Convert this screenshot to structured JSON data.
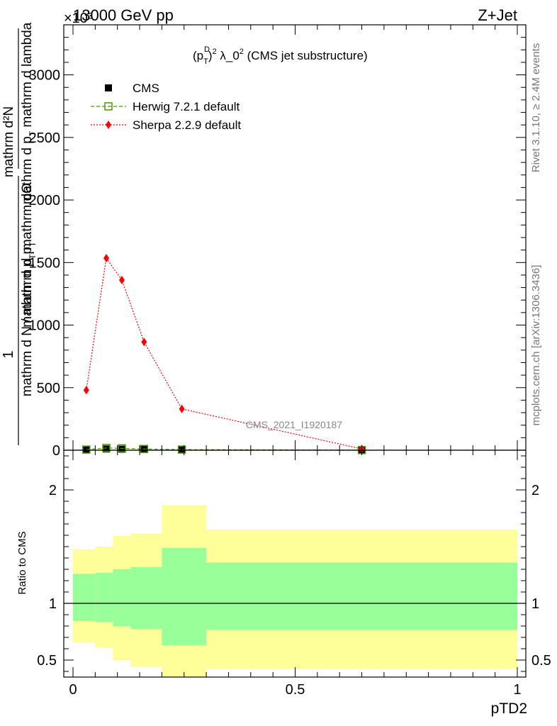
{
  "header": {
    "left": "13000 GeV pp",
    "right": "Z+Jet",
    "exponent": "×10³"
  },
  "plot_title": {
    "p": "(p",
    "sup_d": "D",
    "sub_t": "T",
    "close": ")",
    "sup_2": "2",
    "rest": " λ_0",
    "sup_2b": "2",
    "tail": " (CMS jet substructure)"
  },
  "y_title": {
    "numerator_1": "1",
    "denominator_1": "mathrm d N / mathrm d p",
    "denominator_1_sub": "T",
    "numerator_2": "mathrm d²N",
    "denominator_2": "mathrm d p",
    "denominator_2_sub": "T",
    "denominator_2_rest": " mathrm d lambda",
    "stacked_fraction_denominator": "mathrm d p",
    "stacked_sub": "T",
    "stacked_rest": " mathrm dΘ"
  },
  "right_labels": {
    "rivet": "Rivet 3.1.10, ≥ 2.4M events",
    "mcplots": "mcplots.cern.ch [arXiv:1306.3436]"
  },
  "watermark": "CMS_2021_I1920187",
  "ratio_ylabel": "Ratio to CMS",
  "xlabel": "pTD2",
  "chart_data": {
    "type": "line",
    "xlim": [
      0,
      1
    ],
    "ylim": [
      0,
      3400
    ],
    "y_scale_exponent": 3,
    "xticks": [
      "0",
      "0.5",
      "1"
    ],
    "yticks": [
      "0",
      "500",
      "1000",
      "1500",
      "2000",
      "2500",
      "3000"
    ],
    "x_bins": [
      [
        0,
        0.05
      ],
      [
        0.05,
        0.09
      ],
      [
        0.09,
        0.13
      ],
      [
        0.13,
        0.2
      ],
      [
        0.2,
        0.3
      ],
      [
        0.3,
        1.0
      ]
    ],
    "x_centers": [
      0.03,
      0.075,
      0.11,
      0.16,
      0.245,
      0.65
    ],
    "series": [
      {
        "name": "CMS",
        "marker": "square-filled",
        "color": "#000000",
        "values": [
          2,
          10,
          8,
          6,
          4,
          1
        ]
      },
      {
        "name": "Herwig 7.2.1 default",
        "marker": "square-open",
        "color": "#4c9a00",
        "line": "dashed",
        "values": [
          5,
          18,
          15,
          10,
          5,
          1
        ]
      },
      {
        "name": "Sherpa 2.2.9 default",
        "marker": "diamond",
        "color": "#ff0000",
        "line": "dotted",
        "values": [
          480,
          1535,
          1360,
          865,
          330,
          10
        ]
      }
    ],
    "legend_position": "top-left",
    "ratio_panel": {
      "ylim": [
        0.35,
        2.35
      ],
      "yticks": [
        "0.5",
        "1",
        "2"
      ],
      "reference": 1,
      "inner_band": [
        [
          0.845,
          1.26
        ],
        [
          0.835,
          1.27
        ],
        [
          0.8,
          1.3
        ],
        [
          0.775,
          1.32
        ],
        [
          0.63,
          1.49
        ],
        [
          0.765,
          1.36
        ]
      ],
      "outer_band": [
        [
          0.655,
          1.475
        ],
        [
          0.61,
          1.5
        ],
        [
          0.5,
          1.595
        ],
        [
          0.44,
          1.615
        ],
        [
          0.3,
          1.865
        ],
        [
          0.42,
          1.65
        ]
      ],
      "inner_color": "#99ff99",
      "outer_color": "#ffff99"
    }
  }
}
